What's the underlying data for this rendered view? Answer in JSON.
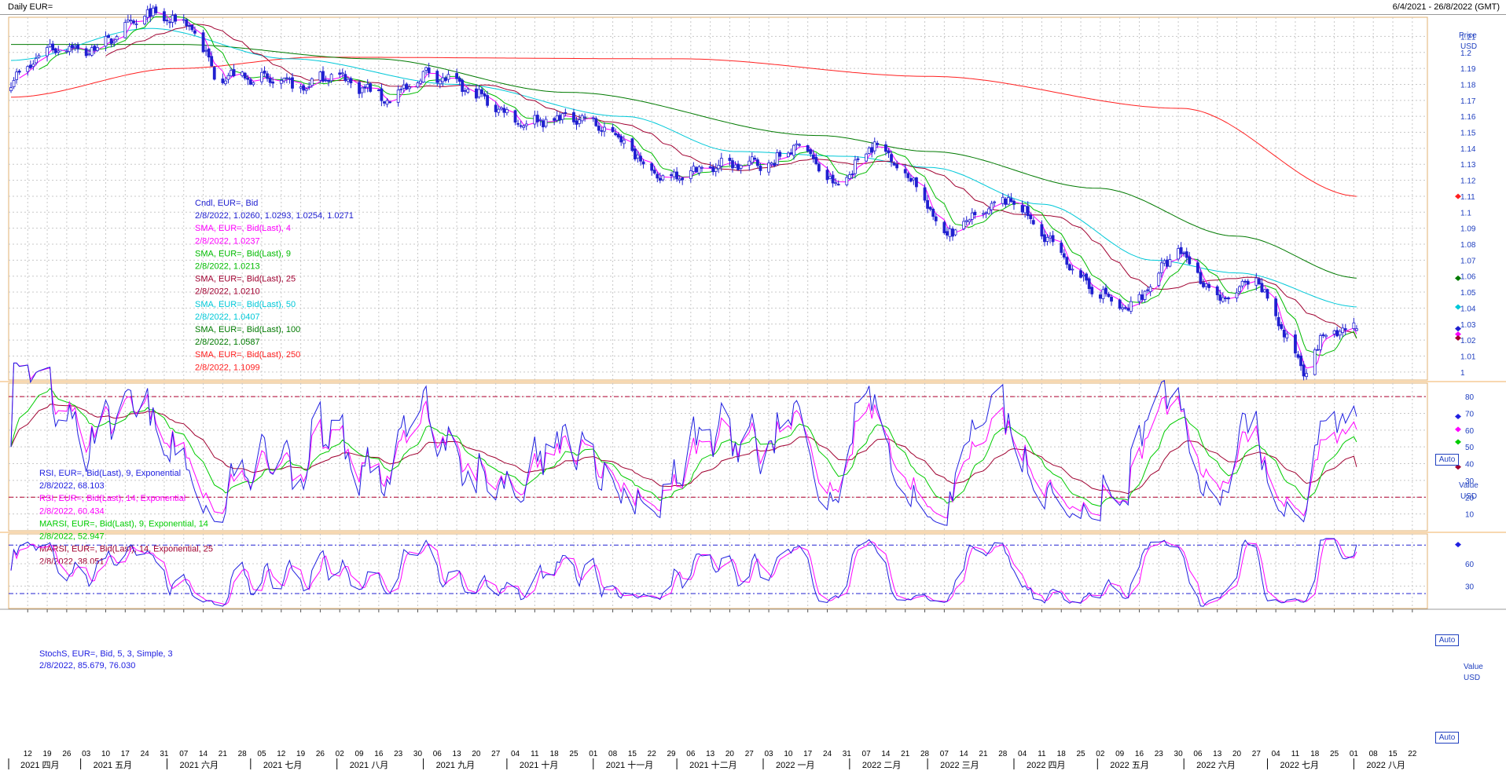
{
  "window": {
    "title": "Daily EUR=",
    "date_range": "6/4/2021 - 26/8/2022 (GMT)"
  },
  "colors": {
    "candle": "#2020d0",
    "sma4": "#ff00ff",
    "sma9": "#00bb00",
    "sma25": "#a00030",
    "sma50": "#00c8d8",
    "sma100": "#007a00",
    "sma250": "#ff2020",
    "rsi9": "#2020e0",
    "rsi14": "#ff00ff",
    "marsi9": "#00cc00",
    "marsi14": "#a00030",
    "stoch_k": "#2020e0",
    "stoch_d": "#ff00ff",
    "grid": "#c8c8c8",
    "level_red": "#b00030",
    "level_blue": "#2020d0"
  },
  "auto_label": "Auto",
  "price_legend": [
    {
      "text": "Cndl, EUR=, Bid",
      "color": "#2020d0"
    },
    {
      "text": "2/8/2022, 1.0260, 1.0293, 1.0254, 1.0271",
      "color": "#2020d0"
    },
    {
      "text": "SMA, EUR=, Bid(Last), 4",
      "color": "#ff00ff"
    },
    {
      "text": "2/8/2022, 1.0237",
      "color": "#ff00ff"
    },
    {
      "text": "SMA, EUR=, Bid(Last), 9",
      "color": "#00bb00"
    },
    {
      "text": "2/8/2022, 1.0213",
      "color": "#00bb00"
    },
    {
      "text": "SMA, EUR=, Bid(Last), 25",
      "color": "#a00030"
    },
    {
      "text": "2/8/2022, 1.0210",
      "color": "#a00030"
    },
    {
      "text": "SMA, EUR=, Bid(Last), 50",
      "color": "#00c8d8"
    },
    {
      "text": "2/8/2022, 1.0407",
      "color": "#00c8d8"
    },
    {
      "text": "SMA, EUR=, Bid(Last), 100",
      "color": "#007a00"
    },
    {
      "text": "2/8/2022, 1.0587",
      "color": "#007a00"
    },
    {
      "text": "SMA, EUR=, Bid(Last), 250",
      "color": "#ff2020"
    },
    {
      "text": "2/8/2022, 1.1099",
      "color": "#ff2020"
    }
  ],
  "rsi_legend": [
    {
      "text": "RSI, EUR=, Bid(Last), 9, Exponential",
      "color": "#2020e0"
    },
    {
      "text": "2/8/2022, 68.103",
      "color": "#2020e0"
    },
    {
      "text": "RSI, EUR=, Bid(Last), 14, Exponential",
      "color": "#ff00ff"
    },
    {
      "text": "2/8/2022, 60.434",
      "color": "#ff00ff"
    },
    {
      "text": "MARSI, EUR=, Bid(Last), 9, Exponential, 14",
      "color": "#00cc00"
    },
    {
      "text": "2/8/2022, 52.947",
      "color": "#00cc00"
    },
    {
      "text": "MARSI, EUR=, Bid(Last), 14, Exponential, 25",
      "color": "#a00030"
    },
    {
      "text": "2/8/2022, 38.051",
      "color": "#a00030"
    }
  ],
  "stoch_legend": [
    {
      "text": "StochS, EUR=, Bid, 5, 3, Simple, 3",
      "color": "#2020e0"
    },
    {
      "text": "2/8/2022, 85.679, 76.030",
      "color": "#2020e0"
    }
  ],
  "chart_data": [
    {
      "type": "candlestick",
      "panel": "price",
      "axis_title": "Price",
      "axis_unit": "USD",
      "ylim": [
        0.995,
        1.222
      ],
      "yticks": [
        1,
        1.01,
        1.02,
        1.03,
        1.04,
        1.05,
        1.06,
        1.07,
        1.08,
        1.09,
        1.1,
        1.11,
        1.12,
        1.13,
        1.14,
        1.15,
        1.16,
        1.17,
        1.18,
        1.19,
        1.2,
        1.21
      ],
      "grid": true,
      "close_anchors": [
        [
          "2021-04-06",
          1.181
        ],
        [
          "2021-04-20",
          1.204
        ],
        [
          "2021-05-05",
          1.201
        ],
        [
          "2021-05-25",
          1.224
        ],
        [
          "2021-06-10",
          1.217
        ],
        [
          "2021-06-18",
          1.1865
        ],
        [
          "2021-07-06",
          1.183
        ],
        [
          "2021-07-20",
          1.178
        ],
        [
          "2021-07-30",
          1.187
        ],
        [
          "2021-08-20",
          1.17
        ],
        [
          "2021-09-03",
          1.188
        ],
        [
          "2021-09-22",
          1.172
        ],
        [
          "2021-10-06",
          1.156
        ],
        [
          "2021-10-27",
          1.16
        ],
        [
          "2021-11-12",
          1.145
        ],
        [
          "2021-11-24",
          1.121
        ],
        [
          "2021-12-15",
          1.129
        ],
        [
          "2022-01-05",
          1.131
        ],
        [
          "2022-01-14",
          1.144
        ],
        [
          "2022-01-27",
          1.115
        ],
        [
          "2022-02-10",
          1.144
        ],
        [
          "2022-02-24",
          1.119
        ],
        [
          "2022-03-07",
          1.086
        ],
        [
          "2022-03-31",
          1.109
        ],
        [
          "2022-04-27",
          1.055
        ],
        [
          "2022-05-12",
          1.038
        ],
        [
          "2022-05-30",
          1.077
        ],
        [
          "2022-06-14",
          1.044
        ],
        [
          "2022-06-27",
          1.058
        ],
        [
          "2022-07-14",
          1.001
        ],
        [
          "2022-07-21",
          1.022
        ],
        [
          "2022-08-02",
          1.0271
        ]
      ],
      "last_candle": {
        "date": "2/8/2022",
        "open": 1.026,
        "high": 1.0293,
        "low": 1.0254,
        "close": 1.0271
      },
      "series": [
        {
          "name": "SMA 4",
          "last": 1.0237
        },
        {
          "name": "SMA 9",
          "last": 1.0213
        },
        {
          "name": "SMA 25",
          "last": 1.021
        },
        {
          "name": "SMA 50",
          "last": 1.0407
        },
        {
          "name": "SMA 100",
          "last": 1.0587
        },
        {
          "name": "SMA 250",
          "last": 1.1099
        }
      ]
    },
    {
      "type": "line",
      "panel": "rsi",
      "axis_title": "Value",
      "axis_unit": "USD",
      "ylim": [
        0,
        88
      ],
      "yticks": [
        10,
        20,
        30,
        40,
        50,
        60,
        70,
        80
      ],
      "levels": [
        80,
        20
      ],
      "series": [
        {
          "name": "RSI 9",
          "last": 68.103
        },
        {
          "name": "RSI 14",
          "last": 60.434
        },
        {
          "name": "MARSI 9",
          "last": 52.947
        },
        {
          "name": "MARSI 14",
          "last": 38.051
        }
      ]
    },
    {
      "type": "line",
      "panel": "stochastic",
      "axis_title": "Value",
      "axis_unit": "USD",
      "ylim": [
        0,
        100
      ],
      "yticks": [
        30,
        60
      ],
      "levels": [
        85,
        20
      ],
      "series": [
        {
          "name": "%K",
          "last": 85.679
        },
        {
          "name": "%D",
          "last": 76.03
        }
      ]
    }
  ],
  "x_axis": {
    "start_date": "2021-04-06",
    "end_date": "2022-08-26",
    "day_ticks": [
      "12",
      "19",
      "26",
      "03",
      "10",
      "17",
      "24",
      "31",
      "07",
      "14",
      "21",
      "28",
      "05",
      "12",
      "19",
      "26",
      "02",
      "09",
      "16",
      "23",
      "30",
      "06",
      "13",
      "20",
      "27",
      "04",
      "11",
      "18",
      "25",
      "01",
      "08",
      "15",
      "22",
      "29",
      "06",
      "13",
      "20",
      "27",
      "03",
      "10",
      "17",
      "24",
      "31",
      "07",
      "14",
      "21",
      "28",
      "07",
      "14",
      "21",
      "28",
      "04",
      "11",
      "18",
      "25",
      "02",
      "09",
      "16",
      "23",
      "30",
      "06",
      "13",
      "20",
      "27",
      "04",
      "11",
      "18",
      "25",
      "01",
      "08",
      "15",
      "22"
    ],
    "months": [
      "2021 四月",
      "2021 五月",
      "2021 六月",
      "2021 七月",
      "2021 八月",
      "2021 九月",
      "2021 十月",
      "2021 十一月",
      "2021 十二月",
      "2022 一月",
      "2022 二月",
      "2022 三月",
      "2022 四月",
      "2022 五月",
      "2022 六月",
      "2022 七月",
      "2022 八月"
    ]
  }
}
